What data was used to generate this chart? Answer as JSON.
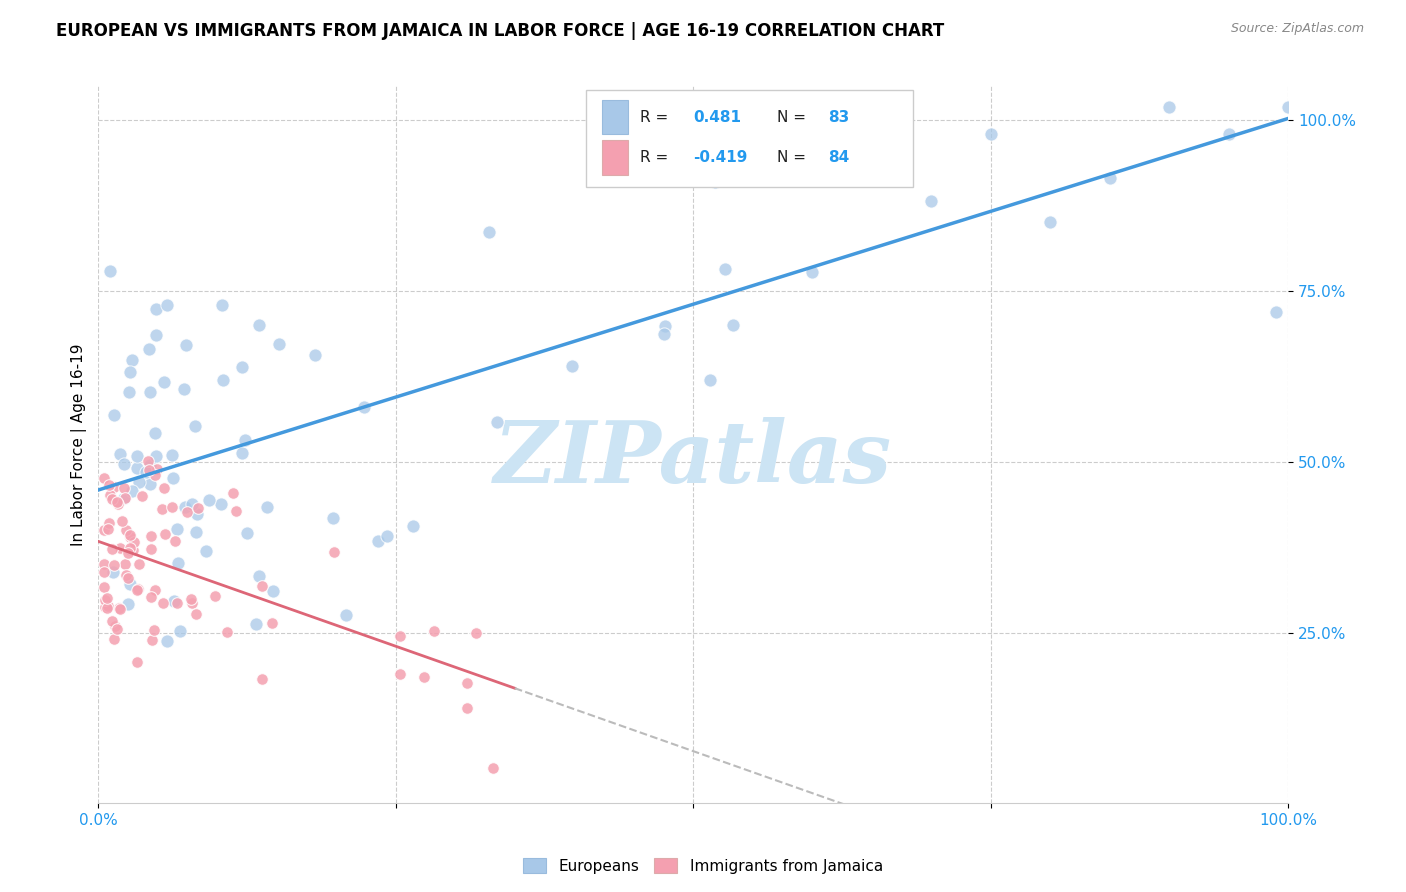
{
  "title": "EUROPEAN VS IMMIGRANTS FROM JAMAICA IN LABOR FORCE | AGE 16-19 CORRELATION CHART",
  "source": "Source: ZipAtlas.com",
  "ylabel": "In Labor Force | Age 16-19",
  "r_european": 0.481,
  "n_european": 83,
  "r_jamaica": -0.419,
  "n_jamaica": 84,
  "blue_scatter_color": "#a8c8e8",
  "pink_scatter_color": "#f4a0b0",
  "blue_line_color": "#4499dd",
  "pink_line_color": "#dd6677",
  "dash_line_color": "#bbbbbb",
  "ytick_labels": [
    "25.0%",
    "50.0%",
    "75.0%",
    "100.0%"
  ],
  "ytick_values": [
    0.25,
    0.5,
    0.75,
    1.0
  ],
  "xtick_labels": [
    "0.0%",
    "100.0%"
  ],
  "xtick_values": [
    0.0,
    1.0
  ],
  "background_color": "#ffffff",
  "watermark_text": "ZIPatlas",
  "watermark_color": "#cce4f4",
  "legend_label_european": "Europeans",
  "legend_label_jamaica": "Immigrants from Jamaica",
  "grid_color": "#cccccc",
  "tick_color": "#2299ee",
  "title_fontsize": 12,
  "source_fontsize": 9
}
